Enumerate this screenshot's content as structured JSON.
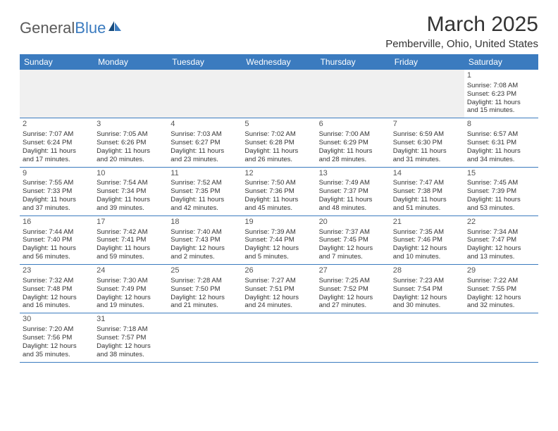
{
  "logo": {
    "general": "General",
    "blue": "Blue"
  },
  "title": "March 2025",
  "location": "Pemberville, Ohio, United States",
  "colors": {
    "header_bg": "#3b7bbf",
    "header_text": "#ffffff",
    "border": "#3b7bbf",
    "first_week_bg": "#f0f0f0",
    "text": "#333333",
    "logo_gray": "#5a5a5a",
    "logo_blue": "#3b7bbf"
  },
  "day_names": [
    "Sunday",
    "Monday",
    "Tuesday",
    "Wednesday",
    "Thursday",
    "Friday",
    "Saturday"
  ],
  "weeks": [
    [
      null,
      null,
      null,
      null,
      null,
      null,
      {
        "d": "1",
        "sunrise": "Sunrise: 7:08 AM",
        "sunset": "Sunset: 6:23 PM",
        "day1": "Daylight: 11 hours",
        "day2": "and 15 minutes."
      }
    ],
    [
      {
        "d": "2",
        "sunrise": "Sunrise: 7:07 AM",
        "sunset": "Sunset: 6:24 PM",
        "day1": "Daylight: 11 hours",
        "day2": "and 17 minutes."
      },
      {
        "d": "3",
        "sunrise": "Sunrise: 7:05 AM",
        "sunset": "Sunset: 6:26 PM",
        "day1": "Daylight: 11 hours",
        "day2": "and 20 minutes."
      },
      {
        "d": "4",
        "sunrise": "Sunrise: 7:03 AM",
        "sunset": "Sunset: 6:27 PM",
        "day1": "Daylight: 11 hours",
        "day2": "and 23 minutes."
      },
      {
        "d": "5",
        "sunrise": "Sunrise: 7:02 AM",
        "sunset": "Sunset: 6:28 PM",
        "day1": "Daylight: 11 hours",
        "day2": "and 26 minutes."
      },
      {
        "d": "6",
        "sunrise": "Sunrise: 7:00 AM",
        "sunset": "Sunset: 6:29 PM",
        "day1": "Daylight: 11 hours",
        "day2": "and 28 minutes."
      },
      {
        "d": "7",
        "sunrise": "Sunrise: 6:59 AM",
        "sunset": "Sunset: 6:30 PM",
        "day1": "Daylight: 11 hours",
        "day2": "and 31 minutes."
      },
      {
        "d": "8",
        "sunrise": "Sunrise: 6:57 AM",
        "sunset": "Sunset: 6:31 PM",
        "day1": "Daylight: 11 hours",
        "day2": "and 34 minutes."
      }
    ],
    [
      {
        "d": "9",
        "sunrise": "Sunrise: 7:55 AM",
        "sunset": "Sunset: 7:33 PM",
        "day1": "Daylight: 11 hours",
        "day2": "and 37 minutes."
      },
      {
        "d": "10",
        "sunrise": "Sunrise: 7:54 AM",
        "sunset": "Sunset: 7:34 PM",
        "day1": "Daylight: 11 hours",
        "day2": "and 39 minutes."
      },
      {
        "d": "11",
        "sunrise": "Sunrise: 7:52 AM",
        "sunset": "Sunset: 7:35 PM",
        "day1": "Daylight: 11 hours",
        "day2": "and 42 minutes."
      },
      {
        "d": "12",
        "sunrise": "Sunrise: 7:50 AM",
        "sunset": "Sunset: 7:36 PM",
        "day1": "Daylight: 11 hours",
        "day2": "and 45 minutes."
      },
      {
        "d": "13",
        "sunrise": "Sunrise: 7:49 AM",
        "sunset": "Sunset: 7:37 PM",
        "day1": "Daylight: 11 hours",
        "day2": "and 48 minutes."
      },
      {
        "d": "14",
        "sunrise": "Sunrise: 7:47 AM",
        "sunset": "Sunset: 7:38 PM",
        "day1": "Daylight: 11 hours",
        "day2": "and 51 minutes."
      },
      {
        "d": "15",
        "sunrise": "Sunrise: 7:45 AM",
        "sunset": "Sunset: 7:39 PM",
        "day1": "Daylight: 11 hours",
        "day2": "and 53 minutes."
      }
    ],
    [
      {
        "d": "16",
        "sunrise": "Sunrise: 7:44 AM",
        "sunset": "Sunset: 7:40 PM",
        "day1": "Daylight: 11 hours",
        "day2": "and 56 minutes."
      },
      {
        "d": "17",
        "sunrise": "Sunrise: 7:42 AM",
        "sunset": "Sunset: 7:41 PM",
        "day1": "Daylight: 11 hours",
        "day2": "and 59 minutes."
      },
      {
        "d": "18",
        "sunrise": "Sunrise: 7:40 AM",
        "sunset": "Sunset: 7:43 PM",
        "day1": "Daylight: 12 hours",
        "day2": "and 2 minutes."
      },
      {
        "d": "19",
        "sunrise": "Sunrise: 7:39 AM",
        "sunset": "Sunset: 7:44 PM",
        "day1": "Daylight: 12 hours",
        "day2": "and 5 minutes."
      },
      {
        "d": "20",
        "sunrise": "Sunrise: 7:37 AM",
        "sunset": "Sunset: 7:45 PM",
        "day1": "Daylight: 12 hours",
        "day2": "and 7 minutes."
      },
      {
        "d": "21",
        "sunrise": "Sunrise: 7:35 AM",
        "sunset": "Sunset: 7:46 PM",
        "day1": "Daylight: 12 hours",
        "day2": "and 10 minutes."
      },
      {
        "d": "22",
        "sunrise": "Sunrise: 7:34 AM",
        "sunset": "Sunset: 7:47 PM",
        "day1": "Daylight: 12 hours",
        "day2": "and 13 minutes."
      }
    ],
    [
      {
        "d": "23",
        "sunrise": "Sunrise: 7:32 AM",
        "sunset": "Sunset: 7:48 PM",
        "day1": "Daylight: 12 hours",
        "day2": "and 16 minutes."
      },
      {
        "d": "24",
        "sunrise": "Sunrise: 7:30 AM",
        "sunset": "Sunset: 7:49 PM",
        "day1": "Daylight: 12 hours",
        "day2": "and 19 minutes."
      },
      {
        "d": "25",
        "sunrise": "Sunrise: 7:28 AM",
        "sunset": "Sunset: 7:50 PM",
        "day1": "Daylight: 12 hours",
        "day2": "and 21 minutes."
      },
      {
        "d": "26",
        "sunrise": "Sunrise: 7:27 AM",
        "sunset": "Sunset: 7:51 PM",
        "day1": "Daylight: 12 hours",
        "day2": "and 24 minutes."
      },
      {
        "d": "27",
        "sunrise": "Sunrise: 7:25 AM",
        "sunset": "Sunset: 7:52 PM",
        "day1": "Daylight: 12 hours",
        "day2": "and 27 minutes."
      },
      {
        "d": "28",
        "sunrise": "Sunrise: 7:23 AM",
        "sunset": "Sunset: 7:54 PM",
        "day1": "Daylight: 12 hours",
        "day2": "and 30 minutes."
      },
      {
        "d": "29",
        "sunrise": "Sunrise: 7:22 AM",
        "sunset": "Sunset: 7:55 PM",
        "day1": "Daylight: 12 hours",
        "day2": "and 32 minutes."
      }
    ],
    [
      {
        "d": "30",
        "sunrise": "Sunrise: 7:20 AM",
        "sunset": "Sunset: 7:56 PM",
        "day1": "Daylight: 12 hours",
        "day2": "and 35 minutes."
      },
      {
        "d": "31",
        "sunrise": "Sunrise: 7:18 AM",
        "sunset": "Sunset: 7:57 PM",
        "day1": "Daylight: 12 hours",
        "day2": "and 38 minutes."
      },
      null,
      null,
      null,
      null,
      null
    ]
  ]
}
